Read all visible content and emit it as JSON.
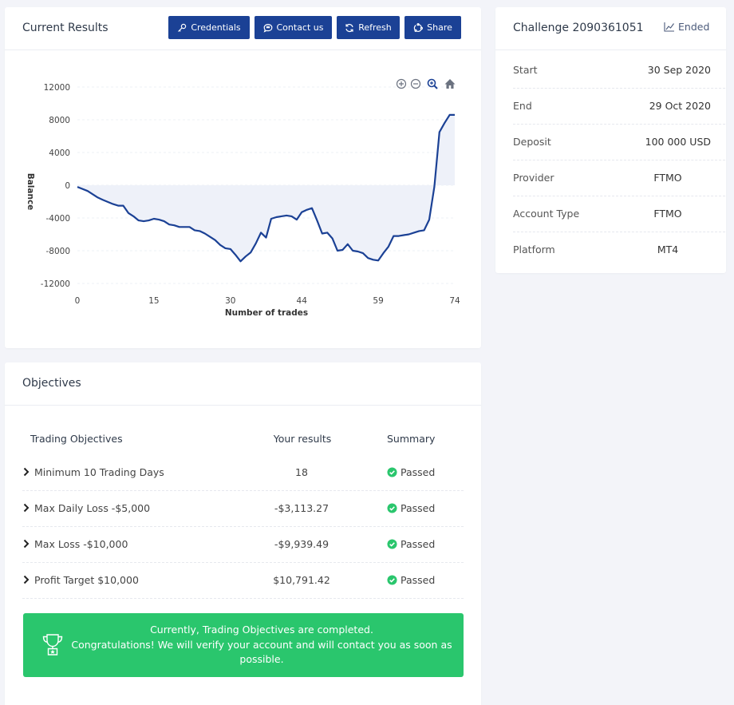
{
  "results": {
    "title": "Current Results",
    "buttons": [
      {
        "label": "Credentials",
        "icon": "key-icon"
      },
      {
        "label": "Contact us",
        "icon": "chat-icon"
      },
      {
        "label": "Refresh",
        "icon": "refresh-icon"
      },
      {
        "label": "Share",
        "icon": "share-icon"
      }
    ]
  },
  "chart_data": {
    "type": "area",
    "xlabel": "Number of trades",
    "ylabel": "Balance",
    "xticks": [
      0,
      15,
      30,
      44,
      59,
      74
    ],
    "yticks": [
      12000,
      8000,
      4000,
      0,
      -4000,
      -8000,
      -12000
    ],
    "xlim": [
      0,
      74
    ],
    "ylim": [
      -12000,
      12000
    ],
    "series": [
      {
        "x": [
          0,
          2,
          4,
          5,
          7,
          8,
          9,
          10,
          11,
          12,
          13,
          14,
          15,
          16,
          17,
          18,
          19,
          20,
          21,
          22,
          23,
          24,
          25,
          26,
          27,
          28,
          29,
          30,
          31,
          32,
          33,
          34,
          35,
          36,
          37,
          38,
          39,
          40,
          41,
          42,
          43,
          44,
          45,
          46,
          47,
          48,
          49,
          50,
          51,
          52,
          53,
          54,
          55,
          56,
          57,
          58,
          59,
          60,
          61,
          62,
          63,
          64,
          65,
          66,
          67,
          68,
          69,
          70,
          71,
          72,
          73,
          74
        ],
        "y": [
          -200,
          -700,
          -1500,
          -1800,
          -2300,
          -2500,
          -2500,
          -3400,
          -3800,
          -4300,
          -4400,
          -4300,
          -4100,
          -4200,
          -4400,
          -4800,
          -4900,
          -5100,
          -5100,
          -5100,
          -5500,
          -5600,
          -5900,
          -6300,
          -6700,
          -7300,
          -7700,
          -7800,
          -8500,
          -9300,
          -8700,
          -8200,
          -7100,
          -5800,
          -6400,
          -4100,
          -3900,
          -3800,
          -3700,
          -3800,
          -4200,
          -3300,
          -3000,
          -2800,
          -4300,
          -5900,
          -5800,
          -6500,
          -8000,
          -7900,
          -7200,
          -8000,
          -8100,
          -8300,
          -8900,
          -9100,
          -9200,
          -8300,
          -7500,
          -6200,
          -6200,
          -6100,
          -6000,
          -5800,
          -5600,
          -5500,
          -4200,
          -200,
          6500,
          7600,
          8600,
          8600
        ]
      }
    ],
    "line_color": "#1b4195",
    "fill_color": "#eef1f9"
  },
  "challenge": {
    "title": "Challenge 2090361051",
    "status": "Ended",
    "rows": [
      {
        "label": "Start",
        "value": "30 Sep 2020"
      },
      {
        "label": "End",
        "value": "29 Oct 2020"
      },
      {
        "label": "Deposit",
        "value": "100 000 USD"
      },
      {
        "label": "Provider",
        "value": "FTMO"
      },
      {
        "label": "Account Type",
        "value": "FTMO"
      },
      {
        "label": "Platform",
        "value": "MT4"
      }
    ]
  },
  "objectives": {
    "title": "Objectives",
    "headers": {
      "objective": "Trading Objectives",
      "results": "Your results",
      "summary": "Summary"
    },
    "rows": [
      {
        "name": "Minimum 10 Trading Days",
        "result": "18",
        "summary": "Passed"
      },
      {
        "name": "Max Daily Loss -$5,000",
        "result": "-$3,113.27",
        "summary": "Passed"
      },
      {
        "name": "Max Loss -$10,000",
        "result": "-$9,939.49",
        "summary": "Passed"
      },
      {
        "name": "Profit Target $10,000",
        "result": "$10,791.42",
        "summary": "Passed"
      }
    ],
    "success_line1": "Currently, Trading Objectives are completed.",
    "success_line2": "Congratulations! We will verify your account and will contact you as soon as possible."
  },
  "colors": {
    "primary": "#1b4195",
    "success": "#2ac66d"
  }
}
